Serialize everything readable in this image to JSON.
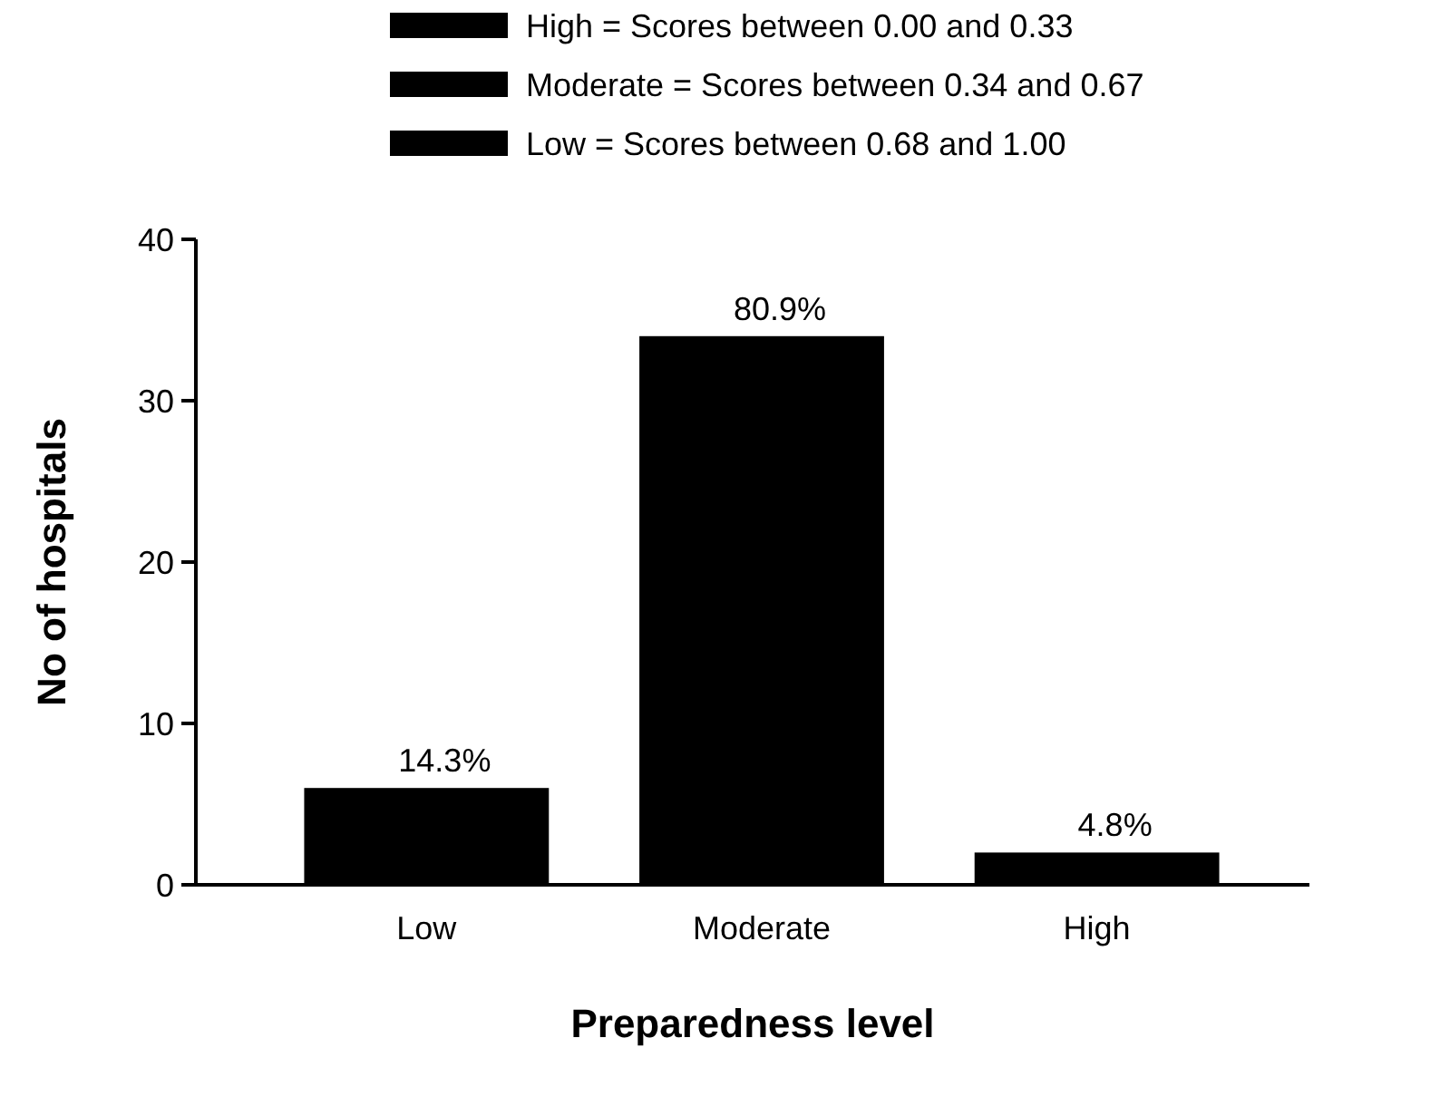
{
  "chart_data": {
    "type": "bar",
    "xlabel": "Preparedness level",
    "ylabel": "No of hospitals",
    "categories": [
      "Low",
      "Moderate",
      "High"
    ],
    "series": [
      {
        "name": "High = Scores between 0.00 and 0.33",
        "color": "#000000",
        "values": [
          null,
          null,
          2
        ]
      },
      {
        "name": "Moderate = Scores between 0.34 and 0.67",
        "color": "#000000",
        "values": [
          null,
          34,
          null
        ]
      },
      {
        "name": "Low = Scores between 0.68 and 1.00",
        "color": "#000000",
        "values": [
          6,
          null,
          null
        ]
      }
    ],
    "annotations": [
      {
        "text": "14.3%",
        "x": "Low",
        "y": 6
      },
      {
        "text": "80.9%",
        "x": "Moderate",
        "y": 34
      },
      {
        "text": "4.8%",
        "x": "High",
        "y": 2
      }
    ],
    "ylim": [
      0,
      40
    ],
    "yticks": [
      0,
      10,
      20,
      30,
      40
    ],
    "grid": false,
    "legend": "top"
  }
}
